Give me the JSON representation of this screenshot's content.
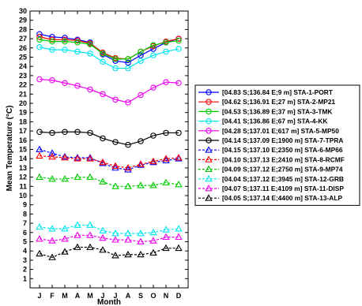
{
  "chart_data": {
    "type": "line",
    "xlabel": "Month",
    "ylabel": "Mean Temperature (°C)",
    "categories": [
      "J",
      "F",
      "M",
      "A",
      "M",
      "J",
      "J",
      "A",
      "S",
      "O",
      "N",
      "D"
    ],
    "ylim": [
      0,
      30
    ],
    "yticks": [
      1,
      2,
      3,
      4,
      5,
      6,
      7,
      8,
      9,
      10,
      11,
      12,
      13,
      14,
      15,
      16,
      17,
      18,
      19,
      20,
      21,
      22,
      23,
      24,
      25,
      26,
      27,
      28,
      29,
      30
    ],
    "grid": false,
    "legend_position": "right",
    "series": [
      {
        "name": "[04.83 S;136.84 E;9 m] STA-1-PORT",
        "color": "#0000ff",
        "marker": "circle",
        "dash": "solid",
        "values": [
          27.5,
          27.2,
          27.1,
          26.9,
          26.6,
          25.3,
          24.6,
          24.4,
          25.2,
          25.9,
          26.6,
          27.0
        ]
      },
      {
        "name": "[04.62 S;136.91 E;27 m] STA-2-MP21",
        "color": "#ff0000",
        "marker": "circle",
        "dash": "solid",
        "values": [
          27.2,
          26.9,
          26.9,
          26.8,
          26.5,
          25.5,
          24.9,
          24.8,
          25.6,
          26.2,
          26.7,
          27.0
        ]
      },
      {
        "name": "[04.53 S;136.89 E;37 m] STA-3-TMK",
        "color": "#00cc00",
        "marker": "circle",
        "dash": "solid",
        "values": [
          26.9,
          26.7,
          26.7,
          26.6,
          26.4,
          25.4,
          24.8,
          24.8,
          25.6,
          26.3,
          26.6,
          26.8
        ]
      },
      {
        "name": "[04.41 S;136.86 E;67 m] STA-4-KK",
        "color": "#00e5ee",
        "marker": "circle",
        "dash": "solid",
        "values": [
          26.1,
          25.8,
          25.8,
          25.6,
          25.4,
          24.5,
          23.8,
          23.8,
          24.6,
          25.2,
          25.6,
          25.9
        ]
      },
      {
        "name": "[04.28 S;137.01 E;617 m] STA-5-MP50",
        "color": "#ee00ee",
        "marker": "circle",
        "dash": "solid",
        "values": [
          22.6,
          22.5,
          22.2,
          21.9,
          21.5,
          21.0,
          20.4,
          20.1,
          20.9,
          21.7,
          22.3,
          22.2
        ]
      },
      {
        "name": "[04.14 S;137.09 E;1900 m] STA-7-TPRA",
        "color": "#000000",
        "marker": "circle",
        "dash": "solid",
        "values": [
          16.9,
          16.8,
          16.9,
          16.9,
          16.8,
          16.2,
          15.8,
          15.5,
          15.9,
          16.5,
          16.8,
          16.8
        ]
      },
      {
        "name": "[04.15 S;137.10 E;2350 m] STA-6-MP66",
        "color": "#0000ff",
        "marker": "triangle",
        "dash": "dashed",
        "values": [
          15.0,
          14.6,
          14.2,
          14.1,
          14.1,
          13.5,
          13.0,
          12.8,
          13.3,
          13.6,
          13.8,
          14.0
        ]
      },
      {
        "name": "[04.10 S;137.13 E;2410 m] STA-8-RCMF",
        "color": "#ff0000",
        "marker": "triangle",
        "dash": "dashed",
        "values": [
          14.3,
          14.2,
          14.1,
          14.0,
          14.0,
          13.6,
          13.2,
          13.0,
          13.4,
          13.7,
          14.0,
          14.1
        ]
      },
      {
        "name": "[04.09 S;137.12 E;2750 m] STA-9-MP74",
        "color": "#00cc00",
        "marker": "triangle",
        "dash": "dashed",
        "values": [
          12.0,
          11.8,
          11.8,
          12.0,
          12.0,
          11.5,
          11.0,
          11.0,
          11.1,
          11.1,
          11.4,
          11.2
        ]
      },
      {
        "name": "[04.04 S;137.12 E;3945 m] STA-12-GRB",
        "color": "#00e5ee",
        "marker": "triangle",
        "dash": "dashed",
        "values": [
          6.6,
          6.4,
          6.4,
          6.8,
          6.8,
          6.2,
          5.9,
          5.9,
          5.9,
          6.0,
          6.3,
          6.4
        ]
      },
      {
        "name": "[04.07 S;137.11 E;4109 m] STA-11-DISP",
        "color": "#ee00ee",
        "marker": "triangle",
        "dash": "dashed",
        "values": [
          5.3,
          5.1,
          5.3,
          5.7,
          5.7,
          5.4,
          5.2,
          5.2,
          5.0,
          5.1,
          5.5,
          5.5
        ]
      },
      {
        "name": "[04.05 S;137.14 E;4400 m] STA-13-ALP",
        "color": "#000000",
        "marker": "triangle",
        "dash": "dashed",
        "values": [
          3.7,
          3.3,
          3.9,
          4.4,
          4.4,
          4.1,
          3.5,
          3.6,
          3.6,
          3.8,
          4.3,
          4.3
        ]
      }
    ]
  }
}
